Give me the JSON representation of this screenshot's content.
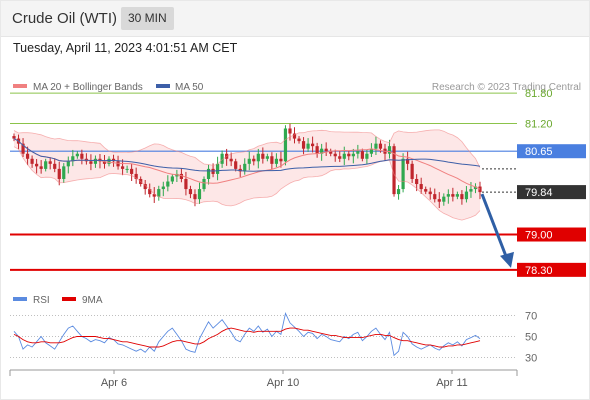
{
  "header": {
    "title": "Crude Oil (WTI)",
    "timeframe": "30 MIN",
    "datetime": "Tuesday, April 11, 2023 4:01:51 AM CET"
  },
  "colors": {
    "bull": "#2fa84f",
    "bear": "#c0262d",
    "ma50": "#3d5fa8",
    "bollinger": "#f08080",
    "band_fill": "#fde3e3",
    "resistance": "#8bc34a",
    "pivot": "#4a7fe0",
    "support": "#e00000",
    "arrow": "#2f5fa5",
    "rsi": "#5b8be0",
    "rsi_ma": "#e00000"
  },
  "chart_data": [
    {
      "type": "line",
      "title": "Crude Oil (WTI) 30 MIN",
      "legend": [
        "MA 20 + Bollinger Bands",
        "MA 50"
      ],
      "legend_placement": "top-left",
      "credit": "Research © 2023 Trading Central",
      "x_ticks": [
        "Apr 6",
        "Apr 10",
        "Apr 11"
      ],
      "price_range": [
        78.0,
        82.1
      ],
      "levels": [
        {
          "value": 81.8,
          "label": "81.80",
          "kind": "resistance"
        },
        {
          "value": 81.2,
          "label": "81.20",
          "kind": "resistance"
        },
        {
          "value": 80.65,
          "label": "80.65",
          "kind": "pivot"
        },
        {
          "value": 79.0,
          "label": "79.00",
          "kind": "support"
        },
        {
          "value": 78.3,
          "label": "78.30",
          "kind": "support"
        }
      ],
      "last_price": {
        "value": 79.84,
        "label": "79.84"
      },
      "forecast_arrow": {
        "from": 79.84,
        "to": 78.3
      },
      "candles_close": [
        80.9,
        80.8,
        80.6,
        80.5,
        80.4,
        80.35,
        80.3,
        80.45,
        80.4,
        80.3,
        80.1,
        80.35,
        80.45,
        80.55,
        80.6,
        80.5,
        80.45,
        80.4,
        80.5,
        80.45,
        80.4,
        80.5,
        80.45,
        80.35,
        80.3,
        80.3,
        80.2,
        80.1,
        80.0,
        79.9,
        79.8,
        79.75,
        79.9,
        79.95,
        80.05,
        80.15,
        80.2,
        80.1,
        79.9,
        79.8,
        79.7,
        79.9,
        80.1,
        80.3,
        80.2,
        80.4,
        80.6,
        80.5,
        80.45,
        80.3,
        80.25,
        80.4,
        80.5,
        80.45,
        80.6,
        80.5,
        80.55,
        80.4,
        80.5,
        80.45,
        81.1,
        81.0,
        80.9,
        80.85,
        80.7,
        80.8,
        80.75,
        80.6,
        80.7,
        80.65,
        80.6,
        80.55,
        80.5,
        80.6,
        80.55,
        80.6,
        80.65,
        80.5,
        80.6,
        80.7,
        80.8,
        80.7,
        80.6,
        80.75,
        79.8,
        79.9,
        80.5,
        80.4,
        80.1,
        80.0,
        79.9,
        79.85,
        79.8,
        79.7,
        79.65,
        79.75,
        79.8,
        79.75,
        79.8,
        79.7,
        79.85,
        79.9,
        79.95,
        79.84
      ]
    },
    {
      "type": "line",
      "title": "RSI",
      "legend": [
        "RSI",
        "9MA"
      ],
      "legend_placement": "top-left",
      "y_ticks": [
        70,
        50,
        30
      ],
      "ylim": [
        20,
        80
      ],
      "rsi": [
        55,
        50,
        38,
        42,
        40,
        45,
        50,
        44,
        41,
        38,
        45,
        52,
        58,
        60,
        55,
        50,
        48,
        45,
        47,
        46,
        44,
        49,
        47,
        43,
        42,
        40,
        38,
        36,
        38,
        35,
        40,
        36,
        45,
        50,
        55,
        58,
        52,
        46,
        38,
        36,
        35,
        48,
        56,
        64,
        58,
        62,
        66,
        60,
        54,
        47,
        45,
        52,
        58,
        55,
        60,
        54,
        57,
        50,
        55,
        52,
        72,
        63,
        59,
        55,
        50,
        54,
        53,
        48,
        52,
        50,
        47,
        46,
        45,
        50,
        48,
        52,
        54,
        46,
        50,
        55,
        58,
        52,
        47,
        54,
        32,
        36,
        54,
        50,
        43,
        40,
        38,
        40,
        42,
        39,
        37,
        41,
        44,
        42,
        45,
        41,
        47,
        49,
        51,
        48
      ],
      "rsi_ma": [
        52,
        50,
        47,
        45,
        44,
        44,
        45,
        45,
        44,
        44,
        44,
        45,
        47,
        49,
        50,
        50,
        50,
        50,
        50,
        49,
        48,
        48,
        47,
        46,
        45,
        45,
        44,
        43,
        42,
        41,
        40,
        40,
        40,
        41,
        43,
        45,
        46,
        46,
        45,
        44,
        43,
        43,
        45,
        48,
        50,
        52,
        55,
        57,
        58,
        57,
        56,
        55,
        55,
        54,
        55,
        55,
        55,
        55,
        55,
        55,
        57,
        58,
        58,
        57,
        56,
        56,
        55,
        54,
        53,
        52,
        51,
        51,
        50,
        49,
        49,
        49,
        49,
        49,
        50,
        51,
        52,
        52,
        51,
        51,
        49,
        47,
        46,
        46,
        45,
        44,
        43,
        42,
        42,
        41,
        40,
        40,
        41,
        41,
        42,
        42,
        43,
        44,
        45,
        46
      ]
    }
  ]
}
